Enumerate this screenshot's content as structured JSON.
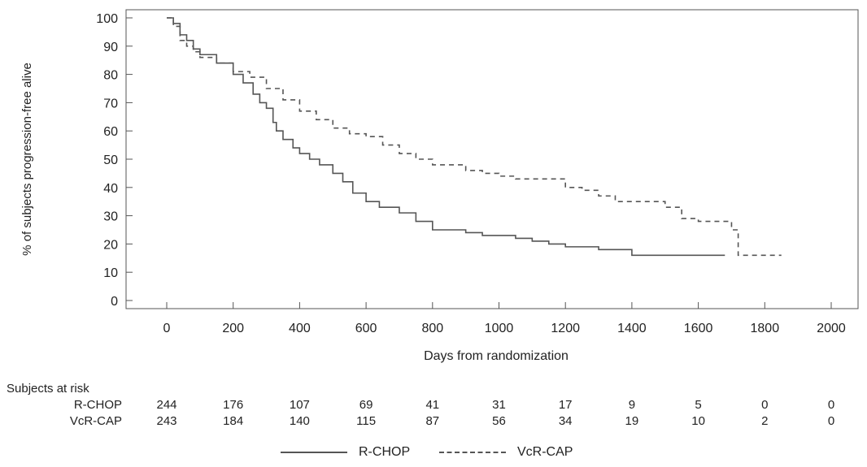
{
  "chart_data": {
    "type": "line",
    "title": "",
    "xlabel": "Days from randomization",
    "ylabel": "% of subjects progression-free alive",
    "xlim": [
      0,
      2000
    ],
    "ylim": [
      0,
      100
    ],
    "x_ticks": [
      0,
      200,
      400,
      600,
      800,
      1000,
      1200,
      1400,
      1600,
      1800,
      2000
    ],
    "y_ticks": [
      0,
      10,
      20,
      30,
      40,
      50,
      60,
      70,
      80,
      90,
      100
    ],
    "grid": false,
    "legend_position": "bottom-center",
    "series": [
      {
        "name": "R-CHOP",
        "style": "solid",
        "color": "#555555",
        "x": [
          0,
          20,
          40,
          60,
          80,
          100,
          150,
          200,
          230,
          260,
          280,
          300,
          320,
          330,
          350,
          380,
          400,
          430,
          460,
          500,
          530,
          560,
          600,
          640,
          700,
          750,
          800,
          850,
          900,
          950,
          1000,
          1050,
          1100,
          1150,
          1200,
          1250,
          1300,
          1350,
          1400,
          1450,
          1500,
          1550,
          1600,
          1650,
          1680
        ],
        "y": [
          100,
          98,
          94,
          92,
          89,
          87,
          84,
          80,
          77,
          73,
          70,
          68,
          63,
          60,
          57,
          54,
          52,
          50,
          48,
          45,
          42,
          38,
          35,
          33,
          31,
          28,
          25,
          25,
          24,
          23,
          23,
          22,
          21,
          20,
          19,
          19,
          18,
          18,
          16,
          16,
          16,
          16,
          16,
          16,
          16
        ]
      },
      {
        "name": "VcR-CAP",
        "style": "dashed",
        "color": "#555555",
        "x": [
          0,
          20,
          40,
          60,
          80,
          100,
          150,
          200,
          250,
          300,
          350,
          400,
          450,
          500,
          550,
          600,
          650,
          700,
          750,
          800,
          850,
          900,
          950,
          1000,
          1050,
          1100,
          1150,
          1200,
          1250,
          1300,
          1350,
          1400,
          1450,
          1500,
          1550,
          1600,
          1650,
          1700,
          1720,
          1800,
          1850
        ],
        "y": [
          100,
          97,
          92,
          90,
          88,
          86,
          84,
          81,
          79,
          75,
          71,
          67,
          64,
          61,
          59,
          58,
          55,
          52,
          50,
          48,
          48,
          46,
          45,
          44,
          43,
          43,
          43,
          40,
          39,
          37,
          35,
          35,
          35,
          33,
          29,
          28,
          28,
          25,
          16,
          16,
          16
        ]
      }
    ]
  },
  "risk_table": {
    "header": "Subjects at risk",
    "timepoints": [
      0,
      200,
      400,
      600,
      800,
      1000,
      1200,
      1400,
      1600,
      1800,
      2000
    ],
    "rows": [
      {
        "label": "R-CHOP",
        "values": [
          "244",
          "176",
          "107",
          "69",
          "41",
          "31",
          "17",
          "9",
          "5",
          "0",
          "0"
        ]
      },
      {
        "label": "VcR-CAP",
        "values": [
          "243",
          "184",
          "140",
          "115",
          "87",
          "56",
          "34",
          "19",
          "10",
          "2",
          "0"
        ]
      }
    ]
  },
  "legend": {
    "items": [
      {
        "label": "R-CHOP",
        "style": "solid"
      },
      {
        "label": "VcR-CAP",
        "style": "dashed"
      }
    ]
  },
  "colors": {
    "axis": "#555555",
    "line": "#555555",
    "text": "#222222"
  }
}
